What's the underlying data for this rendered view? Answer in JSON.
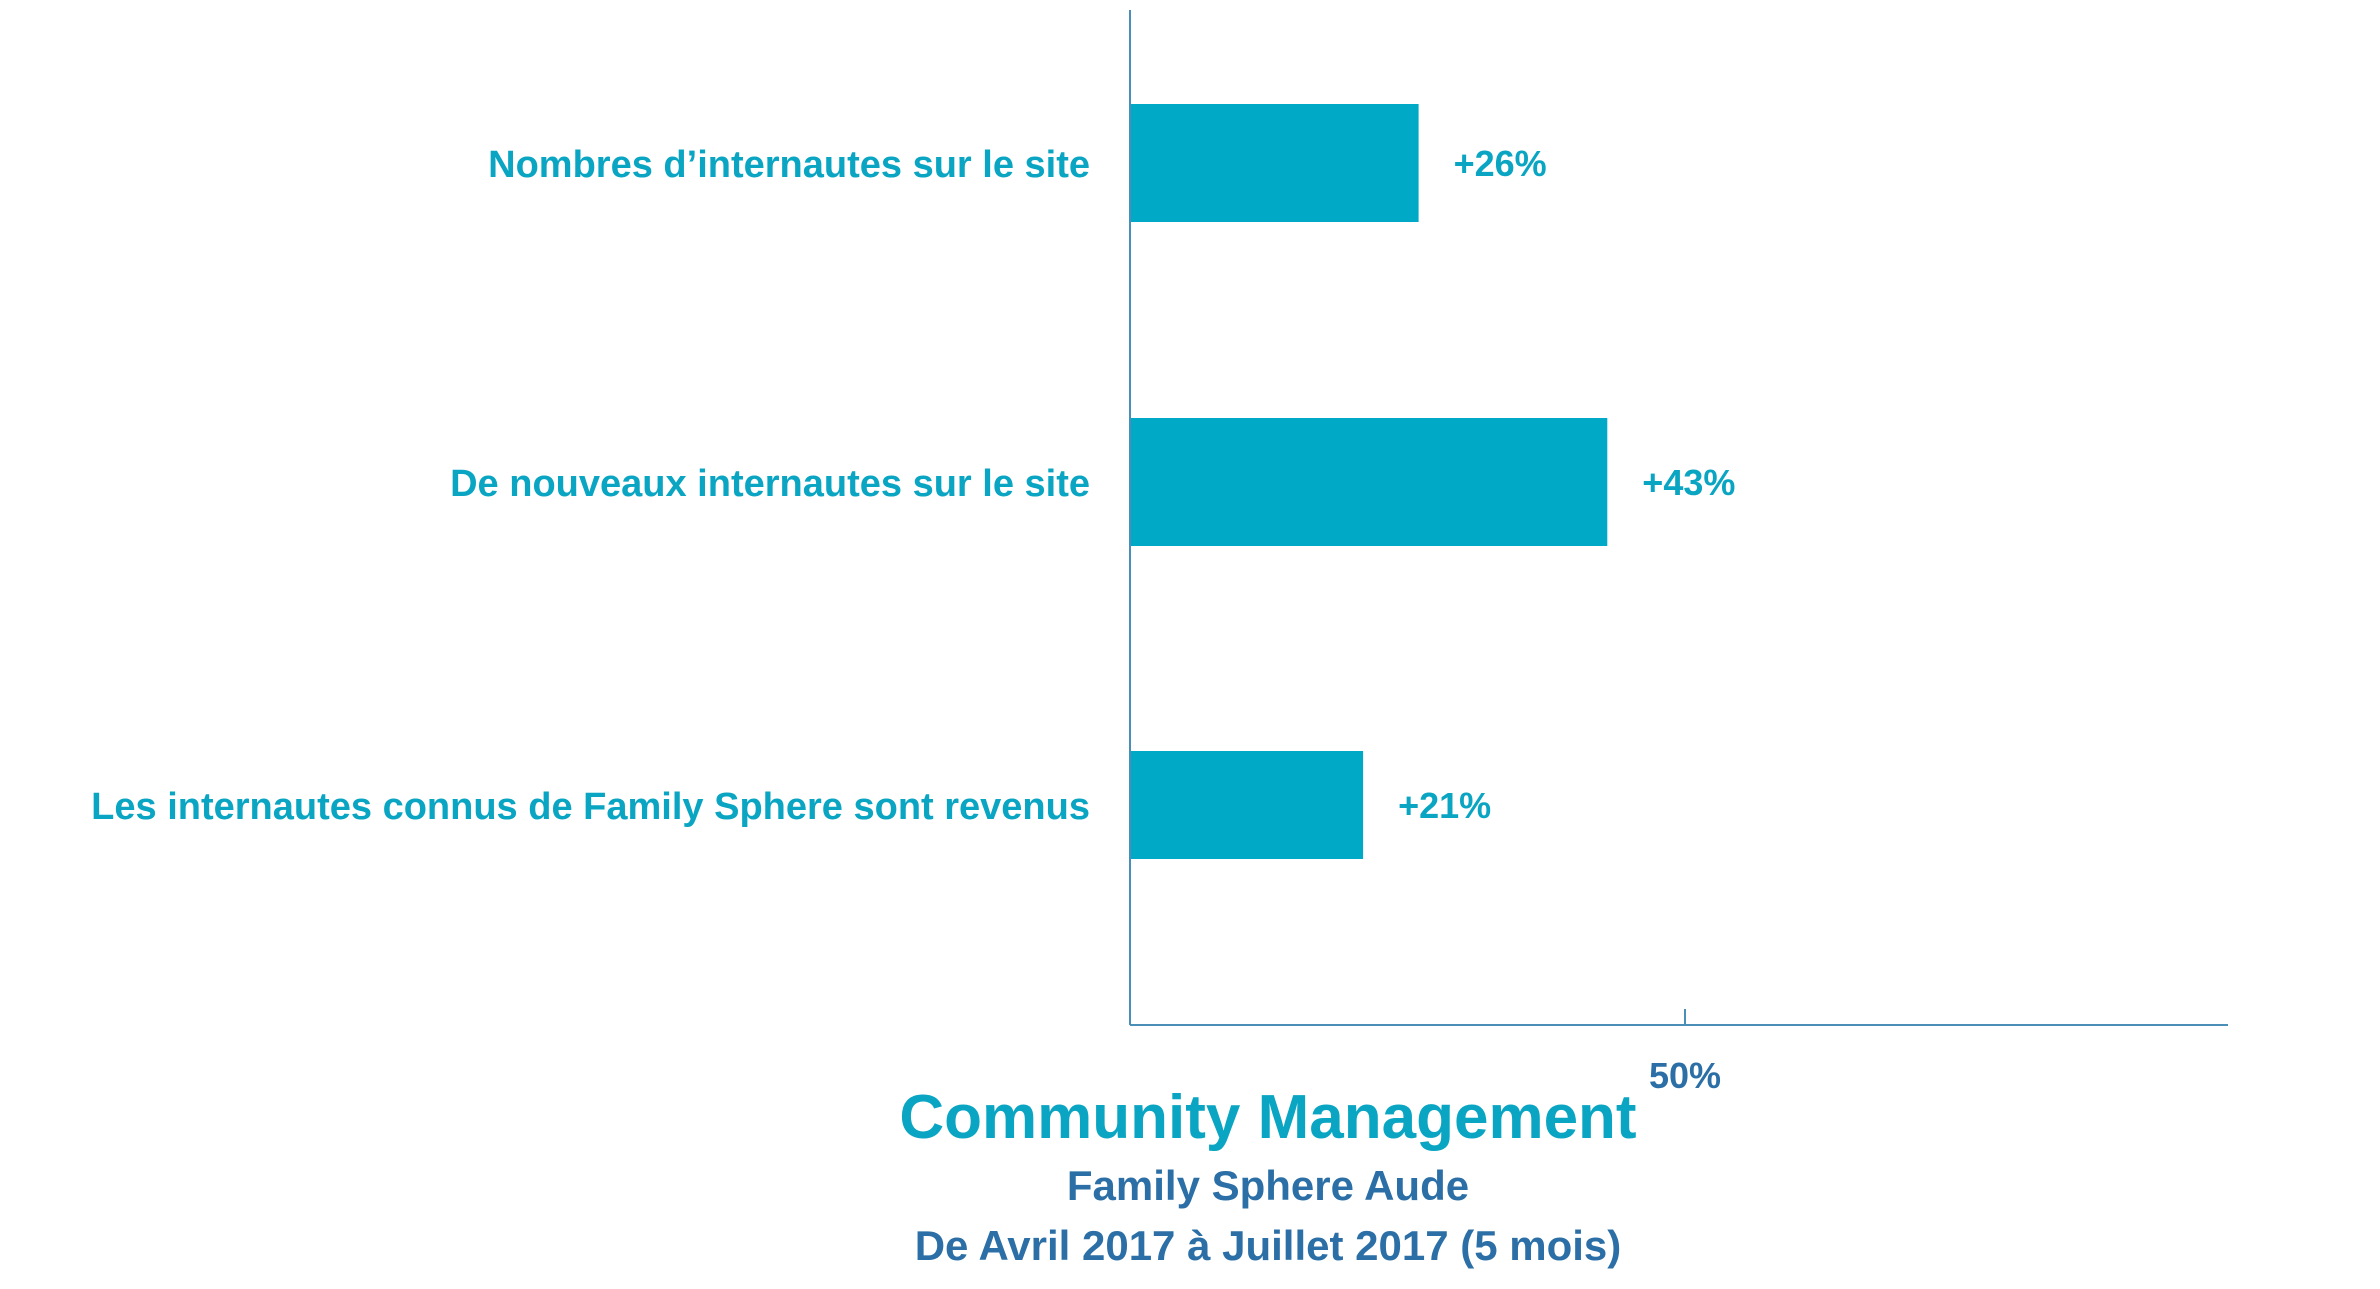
{
  "chart_data": {
    "type": "bar",
    "orientation": "horizontal",
    "categories": [
      "Nombres d’internautes sur le site",
      "De nouveaux internautes sur le site",
      "Les internautes connus de Family Sphere sont revenus"
    ],
    "values": [
      26,
      43,
      21
    ],
    "value_labels": [
      "+26%",
      "+43%",
      "+21%"
    ],
    "x_ticks": [
      50
    ],
    "x_tick_labels": [
      "50%"
    ],
    "xlim": [
      0,
      100
    ],
    "grid": false,
    "legend": "none",
    "title": "Community Management",
    "subtitle_lines": [
      "Family Sphere Aude",
      "De Avril 2017 à Juillet 2017 (5 mois)"
    ]
  },
  "colors": {
    "bar": "#00A9C5",
    "label": "#0AA5C2",
    "axis": "#4A8FB8",
    "tick_text": "#2B6FA6",
    "title": "#0AA5C2",
    "subtitle": "#2B6FA6"
  }
}
